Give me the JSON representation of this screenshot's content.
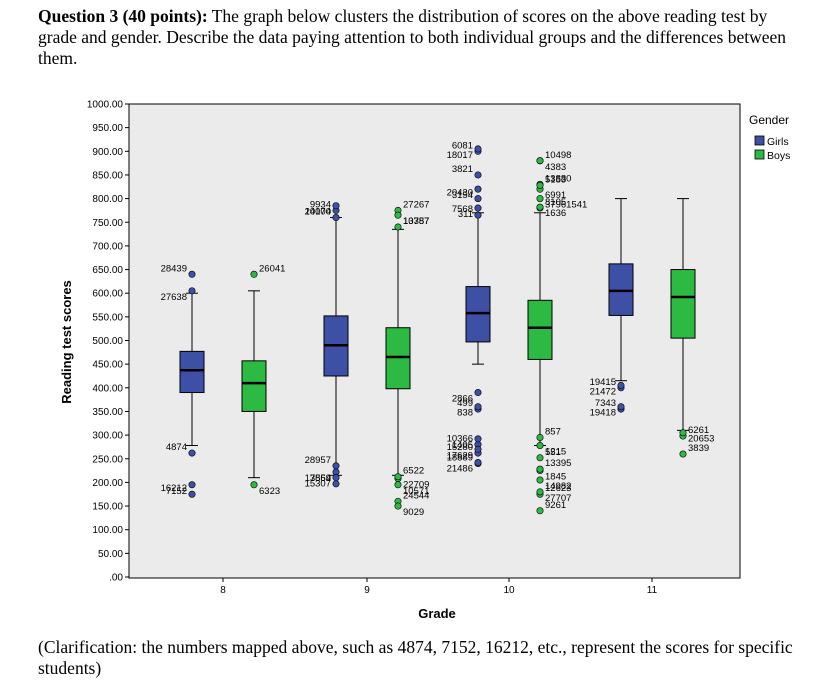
{
  "question": {
    "heading": "Question 3 (40 points):",
    "text": " The graph below clusters the distribution of scores on the above reading test by grade and gender. Describe the data paying attention to both individual groups and the differences between them."
  },
  "clarification": "(Clarification: the numbers mapped above, such as 4874, 7152, 16212, etc., represent the scores for specific students)",
  "colors": {
    "girls": "#3e4fa6",
    "boys": "#2cba43",
    "plot_bg": "#ebebeb",
    "outline": "#000000"
  },
  "chart_data": {
    "type": "boxplot",
    "xlabel": "Grade",
    "ylabel": "Reading test scores",
    "ylim": [
      0,
      1000
    ],
    "yticks": [
      ".00",
      "50.00",
      "100.00",
      "150.00",
      "200.00",
      "250.00",
      "300.00",
      "350.00",
      "400.00",
      "450.00",
      "500.00",
      "550.00",
      "600.00",
      "650.00",
      "700.00",
      "750.00",
      "800.00",
      "850.00",
      "900.00",
      "950.00",
      "1000.00"
    ],
    "categories": [
      "8",
      "9",
      "10",
      "11"
    ],
    "legend": {
      "title": "Gender",
      "position": "right",
      "entries": [
        "Girls",
        "Boys"
      ]
    },
    "series": [
      {
        "name": "Girls",
        "boxes": [
          {
            "grade": "8",
            "whisker_low": 278,
            "q1": 390,
            "median": 437,
            "q3": 477,
            "whisker_high": 600
          },
          {
            "grade": "9",
            "whisker_low": 215,
            "q1": 425,
            "median": 490,
            "q3": 552,
            "whisker_high": 760
          },
          {
            "grade": "10",
            "whisker_low": 450,
            "q1": 497,
            "median": 558,
            "q3": 614,
            "whisker_high": 770
          },
          {
            "grade": "11",
            "whisker_low": 415,
            "q1": 553,
            "median": 605,
            "q3": 662,
            "whisker_high": 800
          }
        ],
        "outliers": [
          {
            "grade": "8",
            "points": [
              {
                "label": "28439",
                "value": 640
              },
              {
                "label": "27638",
                "value": 605
              },
              {
                "label": "4874",
                "value": 262
              },
              {
                "label": "7152",
                "value": 195
              },
              {
                "label": "16212",
                "value": 175
              }
            ]
          },
          {
            "grade": "9",
            "points": [
              {
                "label": "9934",
                "value": 775
              },
              {
                "label": "14100",
                "value": 785
              },
              {
                "label": "20074",
                "value": 760
              },
              {
                "label": "7854",
                "value": 222
              },
              {
                "label": "28957",
                "value": 235
              },
              {
                "label": "15307",
                "value": 210
              },
              {
                "label": "13569",
                "value": 197
              }
            ]
          },
          {
            "grade": "10",
            "points": [
              {
                "label": "6081",
                "value": 900
              },
              {
                "label": "18017",
                "value": 905
              },
              {
                "label": "3821",
                "value": 850
              },
              {
                "label": "3154",
                "value": 820
              },
              {
                "label": "20430",
                "value": 800
              },
              {
                "label": "311",
                "value": 780
              },
              {
                "label": "7568",
                "value": 765
              },
              {
                "label": "2866",
                "value": 390
              },
              {
                "label": "499",
                "value": 355
              },
              {
                "label": "838",
                "value": 360
              },
              {
                "label": "10366",
                "value": 280
              },
              {
                "label": "1405",
                "value": 292
              },
              {
                "label": "15280",
                "value": 262
              },
              {
                "label": "17629",
                "value": 270
              },
              {
                "label": "18889",
                "value": 240
              },
              {
                "label": "21486",
                "value": 242
              }
            ]
          },
          {
            "grade": "11",
            "points": [
              {
                "label": "19415",
                "value": 400
              },
              {
                "label": "21472",
                "value": 405
              },
              {
                "label": "7343",
                "value": 355
              },
              {
                "label": "19418",
                "value": 360
              }
            ]
          }
        ]
      },
      {
        "name": "Boys",
        "boxes": [
          {
            "grade": "8",
            "whisker_low": 210,
            "q1": 350,
            "median": 410,
            "q3": 457,
            "whisker_high": 605
          },
          {
            "grade": "9",
            "whisker_low": 215,
            "q1": 398,
            "median": 465,
            "q3": 527,
            "whisker_high": 735
          },
          {
            "grade": "10",
            "whisker_low": 278,
            "q1": 460,
            "median": 527,
            "q3": 585,
            "whisker_high": 770
          },
          {
            "grade": "11",
            "whisker_low": 310,
            "q1": 505,
            "median": 592,
            "q3": 650,
            "whisker_high": 800
          }
        ],
        "outliers": [
          {
            "grade": "8",
            "points": [
              {
                "label": "26041",
                "value": 640
              },
              {
                "label": "6323",
                "value": 195
              }
            ]
          },
          {
            "grade": "9",
            "points": [
              {
                "label": "27267",
                "value": 775
              },
              {
                "label": "10357",
                "value": 765
              },
              {
                "label": "13787",
                "value": 740
              },
              {
                "label": "22709",
                "value": 208
              },
              {
                "label": "6522",
                "value": 212
              },
              {
                "label": "10571",
                "value": 195
              },
              {
                "label": "24544",
                "value": 160
              },
              {
                "label": "9029",
                "value": 150
              }
            ]
          },
          {
            "grade": "10",
            "points": [
              {
                "label": "10498",
                "value": 880
              },
              {
                "label": "4383",
                "value": 880
              },
              {
                "label": "13880",
                "value": 830
              },
              {
                "label": "6991",
                "value": 820
              },
              {
                "label": "5153",
                "value": 828
              },
              {
                "label": "37961541",
                "value": 800
              },
              {
                "label": "8105",
                "value": 780
              },
              {
                "label": "1636",
                "value": 782
              },
              {
                "label": "857",
                "value": 295
              },
              {
                "label": "1215",
                "value": 278
              },
              {
                "label": "551",
                "value": 252
              },
              {
                "label": "1845",
                "value": 225
              },
              {
                "label": "13395",
                "value": 228
              },
              {
                "label": "14982",
                "value": 205
              },
              {
                "label": "12623",
                "value": 175
              },
              {
                "label": "27707",
                "value": 180
              },
              {
                "label": "9261",
                "value": 140
              }
            ]
          },
          {
            "grade": "11",
            "points": [
              {
                "label": "6261",
                "value": 298
              },
              {
                "label": "20653",
                "value": 305
              },
              {
                "label": "3839",
                "value": 260
              }
            ]
          }
        ]
      }
    ]
  }
}
